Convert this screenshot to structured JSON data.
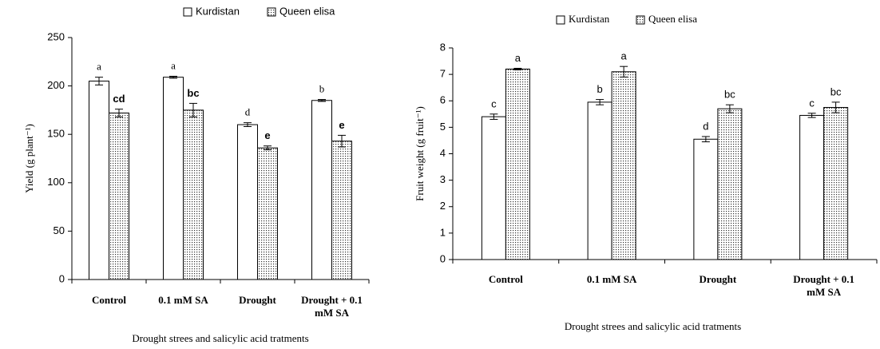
{
  "chart_data": [
    {
      "type": "bar",
      "ylabel": "Yield (g plant⁻¹)",
      "xlabel": "Drought strees and salicylic acid tratments",
      "categories": [
        "Control",
        "0.1 mM SA",
        "Drought",
        "Drought + 0.1 mM SA"
      ],
      "series": [
        {
          "name": "Kurdistan",
          "color": "#ffffff",
          "values": [
            205,
            209,
            160,
            185
          ],
          "errors": [
            4,
            1,
            2,
            1
          ],
          "letters": [
            "a",
            "a",
            "d",
            "b"
          ]
        },
        {
          "name": "Queen elisa",
          "color": "dotted",
          "values": [
            172,
            175,
            136,
            143
          ],
          "errors": [
            4,
            7,
            2,
            6
          ],
          "letters": [
            "cd",
            "bc",
            "e",
            "e"
          ]
        }
      ],
      "ylim": [
        0,
        250
      ],
      "yticks": [
        0,
        50,
        100,
        150,
        200,
        250
      ],
      "legend": "top"
    },
    {
      "type": "bar",
      "ylabel": "Fruit weight (g fruit⁻¹)",
      "xlabel": "Drought strees and salicylic acid tratments",
      "categories": [
        "Control",
        "0.1 mM SA",
        "Drought",
        "Drought + 0.1 mM SA"
      ],
      "series": [
        {
          "name": "Kurdistan",
          "color": "#ffffff",
          "values": [
            5.4,
            5.95,
            4.55,
            5.45
          ],
          "errors": [
            0.1,
            0.1,
            0.1,
            0.08
          ],
          "letters": [
            "c",
            "b",
            "d",
            "c"
          ]
        },
        {
          "name": "Queen elisa",
          "color": "dotted",
          "values": [
            7.2,
            7.1,
            5.7,
            5.75
          ],
          "errors": [
            0.03,
            0.2,
            0.15,
            0.2
          ],
          "letters": [
            "a",
            "a",
            "bc",
            "bc"
          ]
        }
      ],
      "ylim": [
        0,
        8
      ],
      "yticks": [
        0,
        1,
        2,
        3,
        4,
        5,
        6,
        7,
        8
      ],
      "legend": "top"
    }
  ]
}
